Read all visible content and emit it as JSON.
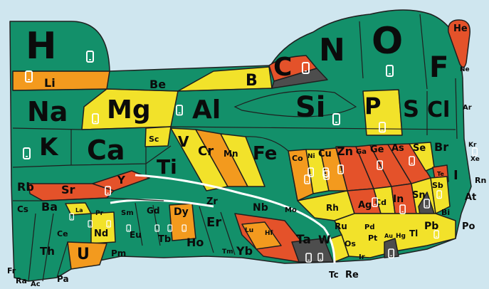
{
  "colors": {
    "background": "#cfe6ef",
    "abundant_green": "#13906a",
    "yellow": "#f2e22a",
    "orange": "#f39a1e",
    "red": "#e4522a",
    "dark_grey": "#4d4d4d",
    "phone_icon": "#ffffff",
    "outline": "#1f1f1f"
  },
  "elements": {
    "H": "H",
    "He": "He",
    "Li": "Li",
    "Be": "Be",
    "B": "B",
    "C": "C",
    "N": "N",
    "O": "O",
    "F": "F",
    "Ne": "Ne",
    "Na": "Na",
    "Mg": "Mg",
    "Al": "Al",
    "Si": "Si",
    "P": "P",
    "S": "S",
    "Cl": "Cl",
    "Ar": "Ar",
    "K": "K",
    "Ca": "Ca",
    "Sc": "Sc",
    "Ti": "Ti",
    "V": "V",
    "Cr": "Cr",
    "Mn": "Mn",
    "Fe": "Fe",
    "Co": "Co",
    "Ni": "Ni",
    "Cu": "Cu",
    "Zn": "Zn",
    "Ga": "Ga",
    "Ge": "Ge",
    "As": "As",
    "Se": "Se",
    "Br": "Br",
    "Kr": "Kr",
    "Xe": "Xe",
    "Rn": "Rn",
    "I": "I",
    "Te": "Te",
    "At": "At",
    "Rb": "Rb",
    "Sr": "Sr",
    "Y": "Y",
    "Zr": "Zr",
    "Nb": "Nb",
    "Mo": "Mo",
    "Tc": "Tc",
    "Ru": "Ru",
    "Rh": "Rh",
    "Pd": "Pd",
    "Ag": "Ag",
    "Cd": "Cd",
    "In": "In",
    "Sn": "Sn",
    "Sb": "Sb",
    "Bi": "Bi",
    "Po": "Po",
    "Cs": "Cs",
    "Ba": "Ba",
    "La": "La",
    "Ce": "Ce",
    "Pr": "Pr",
    "Nd": "Nd",
    "Pm": "Pm",
    "Sm": "Sm",
    "Eu": "Eu",
    "Gd": "Gd",
    "Tb": "Tb",
    "Dy": "Dy",
    "Ho": "Ho",
    "Er": "Er",
    "Tm": "Tm",
    "Yb": "Yb",
    "Lu": "Lu",
    "Hf": "Hf",
    "Ta": "Ta",
    "W": "W",
    "Re": "Re",
    "Os": "Os",
    "Ir": "Ir",
    "Pt": "Pt",
    "Au": "Au",
    "Hg": "Hg",
    "Tl": "Tl",
    "Pb": "Pb",
    "Fr": "Fr",
    "Ra": "Ra",
    "Ac": "Ac",
    "Th": "Th",
    "Pa": "Pa",
    "U": "U"
  },
  "icons": {
    "smartphone": "smartphone-icon"
  }
}
